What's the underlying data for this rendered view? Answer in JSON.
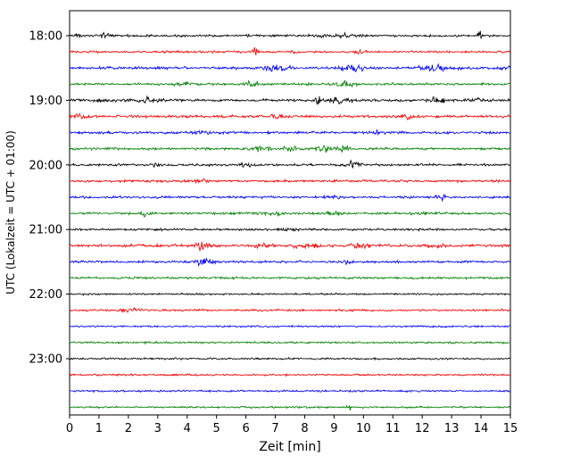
{
  "chart_data": {
    "type": "line",
    "subtype": "helicorder-seismogram",
    "title": "",
    "xlabel": "Zeit  [min]",
    "ylabel": "UTC (Lokalzeit = UTC + 01:00)",
    "xlim": [
      0,
      15
    ],
    "xticks": [
      0,
      1,
      2,
      3,
      4,
      5,
      6,
      7,
      8,
      9,
      10,
      11,
      12,
      13,
      14,
      15
    ],
    "ytick_labels": [
      "18:00",
      "19:00",
      "20:00",
      "21:00",
      "22:00",
      "23:00"
    ],
    "traces_per_hour": 4,
    "trace_interval_min": 15,
    "colors_cycle": [
      "#000000",
      "#ff0000",
      "#0000ff",
      "#008000"
    ],
    "grid": false,
    "legend": "none",
    "traces": [
      {
        "start": "18:00",
        "color": "#000000",
        "noise": 0.9,
        "events": [
          [
            0.3,
            2.0,
            0.15
          ],
          [
            1.2,
            1.4,
            0.2
          ],
          [
            8.6,
            1.4,
            0.2
          ],
          [
            9.3,
            1.1,
            0.3
          ],
          [
            14.0,
            3.0,
            0.12
          ]
        ]
      },
      {
        "start": "18:15",
        "color": "#ff0000",
        "noise": 0.8,
        "events": [
          [
            6.3,
            4.0,
            0.08
          ],
          [
            7.6,
            1.5,
            0.15
          ],
          [
            9.9,
            1.2,
            0.2
          ]
        ]
      },
      {
        "start": "18:30",
        "color": "#0000ff",
        "noise": 1.0,
        "events": [
          [
            7.0,
            2.0,
            0.5
          ],
          [
            9.6,
            2.5,
            0.4
          ],
          [
            12.6,
            2.2,
            0.6
          ],
          [
            14.9,
            1.5,
            0.2
          ]
        ]
      },
      {
        "start": "18:45",
        "color": "#008000",
        "noise": 0.9,
        "events": [
          [
            4.0,
            1.5,
            0.3
          ],
          [
            6.2,
            1.8,
            0.3
          ],
          [
            9.4,
            1.5,
            0.3
          ]
        ]
      },
      {
        "start": "19:00",
        "color": "#000000",
        "noise": 1.0,
        "events": [
          [
            2.7,
            1.5,
            0.5
          ],
          [
            8.5,
            6.0,
            0.1
          ],
          [
            9.2,
            2.5,
            0.3
          ],
          [
            12.5,
            3.5,
            0.3
          ],
          [
            13.8,
            2.0,
            0.2
          ]
        ]
      },
      {
        "start": "19:15",
        "color": "#ff0000",
        "noise": 1.0,
        "events": [
          [
            0.3,
            1.5,
            0.2
          ],
          [
            7.0,
            1.2,
            0.3
          ],
          [
            11.5,
            1.2,
            0.2
          ]
        ]
      },
      {
        "start": "19:30",
        "color": "#0000ff",
        "noise": 0.9,
        "events": [
          [
            4.5,
            1.3,
            0.3
          ],
          [
            10.5,
            1.2,
            0.3
          ]
        ]
      },
      {
        "start": "19:45",
        "color": "#008000",
        "noise": 0.9,
        "events": [
          [
            6.5,
            2.0,
            0.25
          ],
          [
            7.5,
            2.0,
            0.25
          ],
          [
            8.6,
            2.2,
            0.3
          ],
          [
            9.3,
            1.8,
            0.25
          ]
        ]
      },
      {
        "start": "20:00",
        "color": "#000000",
        "noise": 0.9,
        "events": [
          [
            2.9,
            2.5,
            0.12
          ],
          [
            6.0,
            1.3,
            0.3
          ],
          [
            9.7,
            3.0,
            0.25
          ]
        ]
      },
      {
        "start": "20:15",
        "color": "#ff0000",
        "noise": 0.9,
        "events": [
          [
            4.5,
            1.2,
            0.3
          ]
        ]
      },
      {
        "start": "20:30",
        "color": "#0000ff",
        "noise": 0.9,
        "events": [
          [
            9.0,
            1.5,
            0.2
          ],
          [
            12.7,
            2.5,
            0.2
          ]
        ]
      },
      {
        "start": "20:45",
        "color": "#008000",
        "noise": 0.9,
        "events": [
          [
            2.5,
            1.8,
            0.2
          ],
          [
            7.0,
            1.5,
            0.3
          ],
          [
            9.0,
            1.3,
            0.3
          ]
        ]
      },
      {
        "start": "21:00",
        "color": "#000000",
        "noise": 0.8,
        "events": [
          [
            7.5,
            1.2,
            0.3
          ]
        ]
      },
      {
        "start": "21:15",
        "color": "#ff0000",
        "noise": 1.0,
        "events": [
          [
            4.5,
            3.5,
            0.25
          ],
          [
            6.5,
            1.5,
            0.4
          ],
          [
            8.0,
            1.5,
            0.4
          ],
          [
            9.8,
            1.5,
            0.3
          ],
          [
            12.5,
            1.4,
            0.3
          ]
        ]
      },
      {
        "start": "21:30",
        "color": "#0000ff",
        "noise": 0.9,
        "events": [
          [
            4.6,
            3.0,
            0.3
          ],
          [
            9.5,
            2.0,
            0.12
          ]
        ]
      },
      {
        "start": "21:45",
        "color": "#008000",
        "noise": 0.8,
        "events": []
      },
      {
        "start": "22:00",
        "color": "#000000",
        "noise": 0.7,
        "events": []
      },
      {
        "start": "22:15",
        "color": "#ff0000",
        "noise": 0.8,
        "events": [
          [
            2.0,
            1.2,
            0.3
          ]
        ]
      },
      {
        "start": "22:30",
        "color": "#0000ff",
        "noise": 0.7,
        "events": []
      },
      {
        "start": "22:45",
        "color": "#008000",
        "noise": 0.7,
        "events": []
      },
      {
        "start": "23:00",
        "color": "#000000",
        "noise": 0.7,
        "events": []
      },
      {
        "start": "23:15",
        "color": "#ff0000",
        "noise": 0.7,
        "events": []
      },
      {
        "start": "23:30",
        "color": "#0000ff",
        "noise": 0.7,
        "events": []
      },
      {
        "start": "23:45",
        "color": "#008000",
        "noise": 0.7,
        "events": [
          [
            9.5,
            2.5,
            0.08
          ]
        ]
      }
    ]
  }
}
